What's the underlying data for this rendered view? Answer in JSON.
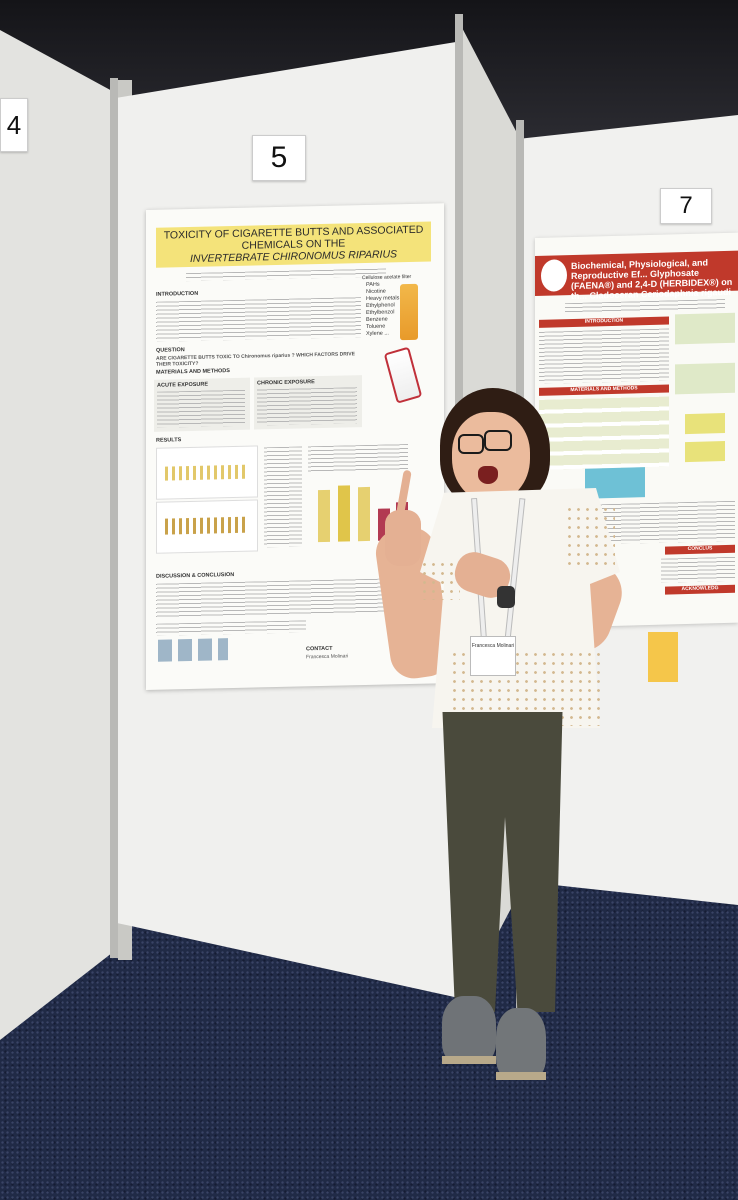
{
  "scene": {
    "description_type": "photo",
    "colors": {
      "poster_title_bg": "#f4e37a",
      "poster2_accent": "#c0392b"
    }
  },
  "board_numbers": {
    "left": "4",
    "main": "5",
    "right": "7"
  },
  "poster": {
    "title_line1": "TOXICITY OF CIGARETTE BUTTS AND ASSOCIATED CHEMICALS ON THE",
    "title_line2": "INVERTEBRATE CHIRONOMUS RIPARIUS",
    "sections": {
      "introduction": "INTRODUCTION",
      "question": "QUESTION",
      "question_text": "ARE CIGARETTE BUTTS TOXIC TO Chironomus riparius ? WHICH FACTORS DRIVE THEIR TOXICITY?",
      "materials": "MATERIALS AND METHODS",
      "acute": "ACUTE EXPOSURE",
      "chronic": "CHRONIC EXPOSURE",
      "results": "RESULTS",
      "discussion": "DISCUSSION & CONCLUSION",
      "contact": "CONTACT"
    },
    "filter_title": "Cellulose acetate filter",
    "filter_chemicals": [
      "PAHs",
      "Nicotine",
      "Heavy metals",
      "Ethylphenol",
      "Ethylbenzol",
      "Benzene",
      "Toluene",
      "Xylene ..."
    ],
    "contact_name": "Francesca Molinari"
  },
  "poster2": {
    "title": "Biochemical, Physiological, and Reproductive Ef... Glyphosate (FAENA®) and 2,4-D (HERBIDEX®) on th... Cladoceran Ceriodaphnia rigaudi",
    "introduction": "INTRODUCTION",
    "materials": "MATERIALS AND METHODS",
    "conclusion": "CONCLUS",
    "acknowledge": "ACKNOWLEDG"
  },
  "badge": {
    "name": "Francesca Molinari"
  }
}
